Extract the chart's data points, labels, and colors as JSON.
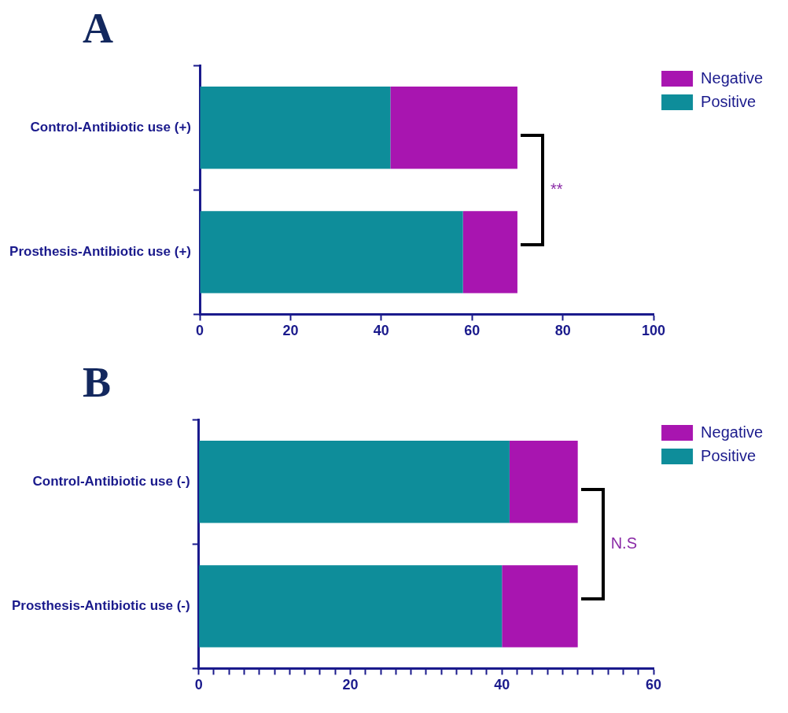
{
  "chart_data": [
    {
      "type": "bar",
      "title": "A",
      "orientation": "horizontal",
      "stacked": true,
      "categories": [
        "Control-Antibiotic use (+)",
        "Prosthesis-Antibiotic use (+)"
      ],
      "series": [
        {
          "name": "Positive",
          "color": "#0e8d9a",
          "values": [
            42,
            58
          ]
        },
        {
          "name": "Negative",
          "color": "#a815b0",
          "values": [
            28,
            12
          ]
        }
      ],
      "xlim": [
        0,
        100
      ],
      "xticks": [
        0,
        20,
        40,
        60,
        80,
        100
      ],
      "legend": "top right",
      "annotations": [
        "**"
      ]
    },
    {
      "type": "bar",
      "title": "B",
      "orientation": "horizontal",
      "stacked": true,
      "categories": [
        "Control-Antibiotic use (-)",
        "Prosthesis-Antibiotic use (-)"
      ],
      "series": [
        {
          "name": "Positive",
          "color": "#0e8d9a",
          "values": [
            41,
            40
          ]
        },
        {
          "name": "Negative",
          "color": "#a815b0",
          "values": [
            9,
            10
          ]
        }
      ],
      "xlim": [
        0,
        60
      ],
      "xticks": [
        0,
        {
          "value": 2,
          "label": null
        },
        {
          "value": 4,
          "label": null
        },
        {
          "value": 6,
          "label": null
        },
        {
          "value": 8,
          "label": null
        },
        {
          "value": 10,
          "label": null
        },
        {
          "value": 12,
          "label": null
        },
        {
          "value": 14,
          "label": null
        },
        {
          "value": 16,
          "label": null
        },
        {
          "value": 18,
          "label": null
        },
        20,
        {
          "value": 22,
          "label": null
        },
        {
          "value": 24,
          "label": null
        },
        {
          "value": 26,
          "label": null
        },
        {
          "value": 28,
          "label": null
        },
        {
          "value": 30,
          "label": null
        },
        {
          "value": 32,
          "label": null
        },
        {
          "value": 34,
          "label": null
        },
        {
          "value": 36,
          "label": null
        },
        {
          "value": 38,
          "label": null
        },
        40,
        {
          "value": 42,
          "label": null
        },
        {
          "value": 44,
          "label": null
        },
        {
          "value": 46,
          "label": null
        },
        {
          "value": 48,
          "label": null
        },
        {
          "value": 50,
          "label": null
        },
        {
          "value": 52,
          "label": null
        },
        {
          "value": 54,
          "label": null
        },
        {
          "value": 56,
          "label": null
        },
        {
          "value": 58,
          "label": null
        },
        60
      ],
      "legend": "top right",
      "annotations": [
        "N.S"
      ]
    }
  ]
}
